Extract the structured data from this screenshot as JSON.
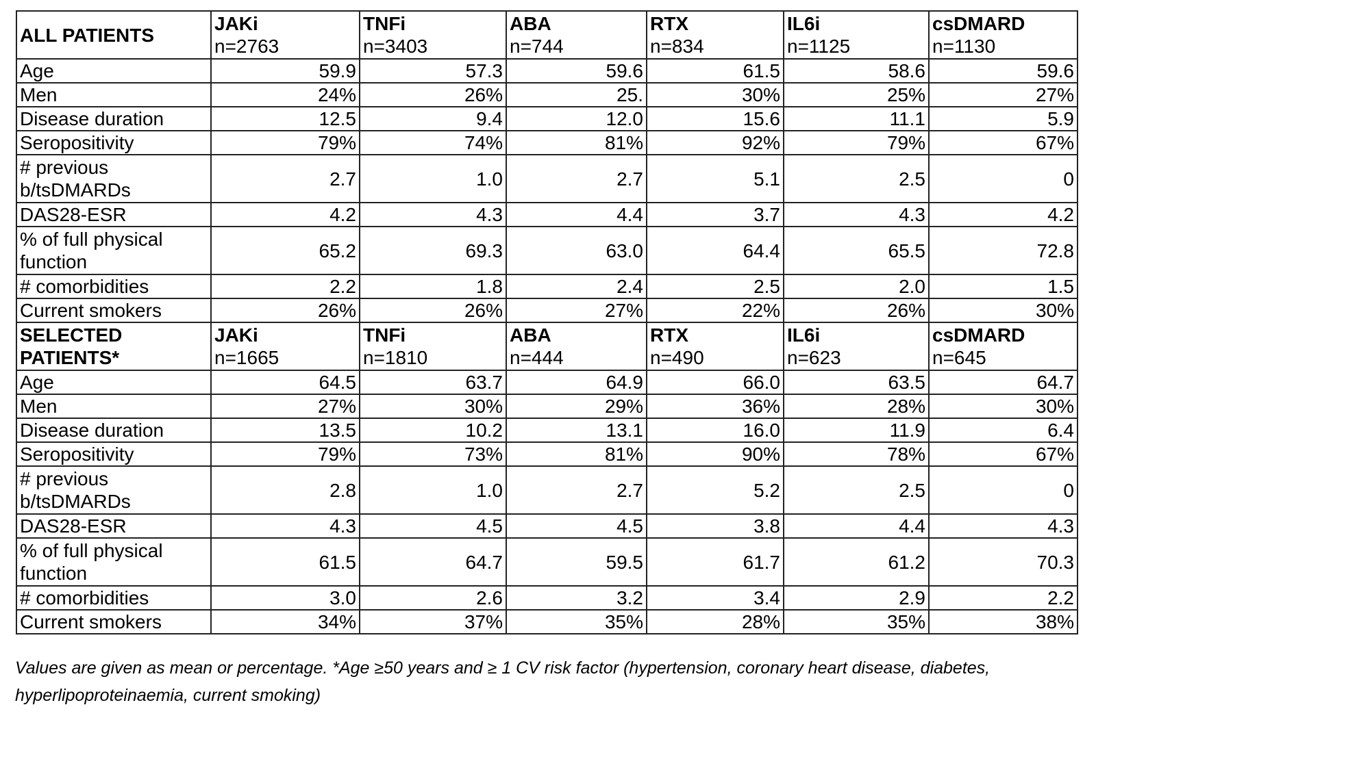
{
  "sections": [
    {
      "title": "ALL PATIENTS",
      "columns": [
        {
          "name": "JAKi",
          "n": "n=2763"
        },
        {
          "name": "TNFi",
          "n": "n=3403"
        },
        {
          "name": "ABA",
          "n": "n=744"
        },
        {
          "name": "RTX",
          "n": "n=834"
        },
        {
          "name": "IL6i",
          "n": "n=1125"
        },
        {
          "name": "csDMARD",
          "n": "n=1130"
        }
      ],
      "rows": [
        {
          "label": "Age",
          "values": [
            "59.9",
            "57.3",
            "59.6",
            "61.5",
            "58.6",
            "59.6"
          ]
        },
        {
          "label": "Men",
          "values": [
            "24%",
            "26%",
            "25.",
            "30%",
            "25%",
            "27%"
          ]
        },
        {
          "label": "Disease duration",
          "values": [
            "12.5",
            "9.4",
            "12.0",
            "15.6",
            "11.1",
            "5.9"
          ]
        },
        {
          "label": "Seropositivity",
          "values": [
            "79%",
            "74%",
            "81%",
            "92%",
            "79%",
            "67%"
          ]
        },
        {
          "label": "# previous b/tsDMARDs",
          "values": [
            "2.7",
            "1.0",
            "2.7",
            "5.1",
            "2.5",
            "0"
          ]
        },
        {
          "label": "DAS28-ESR",
          "values": [
            "4.2",
            "4.3",
            "4.4",
            "3.7",
            "4.3",
            "4.2"
          ]
        },
        {
          "label": "% of full physical function",
          "values": [
            "65.2",
            "69.3",
            "63.0",
            "64.4",
            "65.5",
            "72.8"
          ]
        },
        {
          "label": "# comorbidities",
          "values": [
            "2.2",
            "1.8",
            "2.4",
            "2.5",
            "2.0",
            "1.5"
          ]
        },
        {
          "label": "Current smokers",
          "values": [
            "26%",
            "26%",
            "27%",
            "22%",
            "26%",
            "30%"
          ]
        }
      ]
    },
    {
      "title": "SELECTED PATIENTS*",
      "columns": [
        {
          "name": "JAKi",
          "n": "n=1665"
        },
        {
          "name": "TNFi",
          "n": "n=1810"
        },
        {
          "name": "ABA",
          "n": "n=444"
        },
        {
          "name": "RTX",
          "n": "n=490"
        },
        {
          "name": "IL6i",
          "n": "n=623"
        },
        {
          "name": "csDMARD",
          "n": "n=645"
        }
      ],
      "rows": [
        {
          "label": "Age",
          "values": [
            "64.5",
            "63.7",
            "64.9",
            "66.0",
            "63.5",
            "64.7"
          ]
        },
        {
          "label": "Men",
          "values": [
            "27%",
            "30%",
            "29%",
            "36%",
            "28%",
            "30%"
          ]
        },
        {
          "label": "Disease duration",
          "values": [
            "13.5",
            "10.2",
            "13.1",
            "16.0",
            "11.9",
            "6.4"
          ]
        },
        {
          "label": "Seropositivity",
          "values": [
            "79%",
            "73%",
            "81%",
            "90%",
            "78%",
            "67%"
          ]
        },
        {
          "label": "# previous b/tsDMARDs",
          "values": [
            "2.8",
            "1.0",
            "2.7",
            "5.2",
            "2.5",
            "0"
          ]
        },
        {
          "label": "DAS28-ESR",
          "values": [
            "4.3",
            "4.5",
            "4.5",
            "3.8",
            "4.4",
            "4.3"
          ]
        },
        {
          "label": "% of full physical function",
          "values": [
            "61.5",
            "64.7",
            "59.5",
            "61.7",
            "61.2",
            "70.3"
          ]
        },
        {
          "label": "# comorbidities",
          "values": [
            "3.0",
            "2.6",
            "3.2",
            "3.4",
            "2.9",
            "2.2"
          ]
        },
        {
          "label": "Current smokers",
          "values": [
            "34%",
            "37%",
            "35%",
            "28%",
            "35%",
            "38%"
          ]
        }
      ]
    }
  ],
  "footnote": "Values are given as mean or percentage. *Age ≥50 years and ≥ 1 CV risk factor (hypertension, coronary heart disease, diabetes, hyperlipoproteinaemia, current smoking)"
}
